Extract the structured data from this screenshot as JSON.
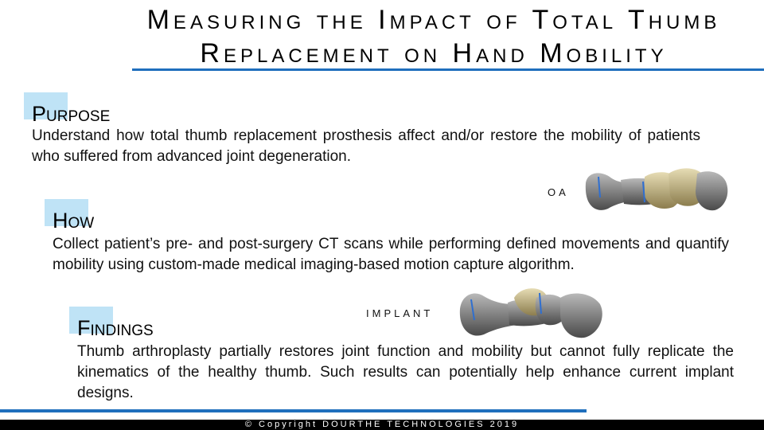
{
  "title": {
    "line1": "Measuring the Impact of Total Thumb",
    "line2": "Replacement on Hand Mobility"
  },
  "sections": {
    "purpose": {
      "heading": "Purpose",
      "body": "Understand how total thumb replacement prosthesis affect and/or restore the mobility of patients who suffered from advanced joint degeneration."
    },
    "how": {
      "heading": "How",
      "body": "Collect patient’s pre- and post-surgery CT scans while performing defined movements and quantify mobility using custom-made medical imaging-based motion capture algorithm."
    },
    "findings": {
      "heading": "Findings",
      "body": "Thumb arthroplasty partially restores joint function and mobility but cannot fully replicate the kinematics of the healthy thumb. Such results can potentially help enhance current implant designs."
    }
  },
  "images": {
    "oa_label": "OA",
    "implant_label": "IMPLANT"
  },
  "footer": {
    "text": "© Copyright    DOURTHE TECHNOLOGIES    2019"
  },
  "colors": {
    "accent_blue": "#1f6fbd",
    "heading_box": "#bfe3f6",
    "footer_bg": "#000000"
  }
}
